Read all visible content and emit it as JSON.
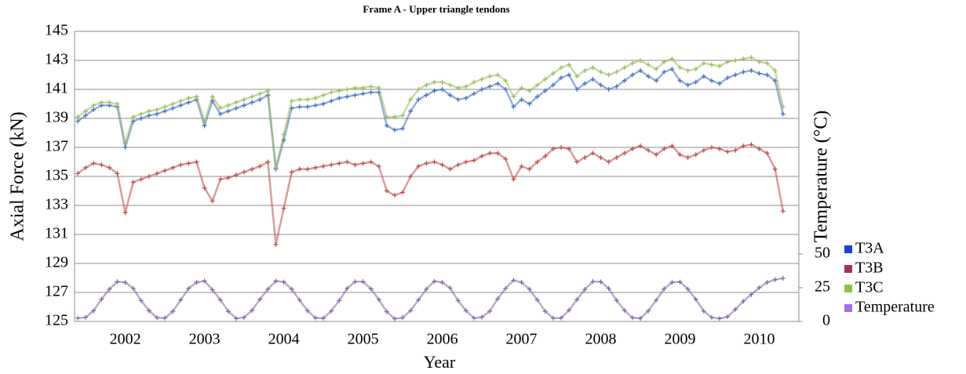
{
  "chart_data": {
    "type": "scatter",
    "title": "Frame A - Upper triangle tendons",
    "x_label": "Year",
    "y_label": "Axial Force (kN)",
    "y2_label": "Temperature (°C)",
    "xlim": [
      2001.36,
      2010.5
    ],
    "xticks": [
      2002,
      2003,
      2004,
      2005,
      2006,
      2007,
      2008,
      2009,
      2010
    ],
    "ylim": [
      125,
      145
    ],
    "yticks": [
      125,
      127,
      129,
      131,
      133,
      135,
      137,
      139,
      141,
      143,
      145
    ],
    "y2lim": [
      0,
      215
    ],
    "y2ticks": [
      0,
      25,
      50
    ],
    "grid": true,
    "legend": "right",
    "x": [
      2001.4,
      2001.5,
      2001.6,
      2001.7,
      2001.8,
      2001.9,
      2002.0,
      2002.1,
      2002.2,
      2002.3,
      2002.4,
      2002.5,
      2002.6,
      2002.7,
      2002.8,
      2002.9,
      2003.0,
      2003.1,
      2003.2,
      2003.3,
      2003.4,
      2003.5,
      2003.6,
      2003.7,
      2003.8,
      2003.9,
      2004.0,
      2004.1,
      2004.2,
      2004.3,
      2004.4,
      2004.5,
      2004.6,
      2004.7,
      2004.8,
      2004.9,
      2005.0,
      2005.1,
      2005.2,
      2005.3,
      2005.4,
      2005.5,
      2005.6,
      2005.7,
      2005.8,
      2005.9,
      2006.0,
      2006.1,
      2006.2,
      2006.3,
      2006.4,
      2006.5,
      2006.6,
      2006.7,
      2006.8,
      2006.9,
      2007.0,
      2007.1,
      2007.2,
      2007.3,
      2007.4,
      2007.5,
      2007.6,
      2007.7,
      2007.8,
      2007.9,
      2008.0,
      2008.1,
      2008.2,
      2008.3,
      2008.4,
      2008.5,
      2008.6,
      2008.7,
      2008.8,
      2008.9,
      2009.0,
      2009.1,
      2009.2,
      2009.3,
      2009.4,
      2009.5,
      2009.6,
      2009.7,
      2009.8,
      2009.9,
      2010.0,
      2010.1,
      2010.2,
      2010.3
    ],
    "series": [
      {
        "name": "T3A",
        "color": "#3f6fbf",
        "legend_color": "#1c3fdc",
        "values": [
          138.8,
          139.2,
          139.6,
          139.9,
          139.9,
          139.8,
          137.0,
          138.8,
          139.0,
          139.2,
          139.3,
          139.5,
          139.7,
          139.9,
          140.1,
          140.3,
          138.5,
          140.2,
          139.3,
          139.5,
          139.7,
          139.9,
          140.1,
          140.3,
          140.6,
          135.5,
          137.5,
          139.7,
          139.8,
          139.8,
          139.9,
          140.0,
          140.2,
          140.4,
          140.5,
          140.6,
          140.7,
          140.8,
          140.8,
          138.5,
          138.2,
          138.3,
          139.5,
          140.3,
          140.6,
          140.9,
          141.0,
          140.6,
          140.3,
          140.4,
          140.7,
          141.0,
          141.2,
          141.4,
          141.0,
          139.8,
          140.3,
          140.0,
          140.5,
          140.9,
          141.3,
          141.8,
          142.0,
          141.0,
          141.4,
          141.7,
          141.3,
          141.0,
          141.2,
          141.6,
          142.0,
          142.3,
          141.9,
          141.6,
          142.2,
          142.4,
          141.6,
          141.3,
          141.5,
          141.9,
          141.6,
          141.4,
          141.8,
          142.0,
          142.2,
          142.3,
          142.1,
          142.0,
          141.6,
          139.3
        ]
      },
      {
        "name": "T3B",
        "color": "#be4b48",
        "legend_color": "#a0325a",
        "values": [
          135.2,
          135.6,
          135.9,
          135.8,
          135.6,
          135.2,
          132.5,
          134.6,
          134.8,
          135.0,
          135.2,
          135.4,
          135.6,
          135.8,
          135.9,
          136.0,
          134.2,
          133.3,
          134.8,
          134.9,
          135.1,
          135.3,
          135.5,
          135.7,
          136.0,
          130.3,
          132.8,
          135.3,
          135.5,
          135.5,
          135.6,
          135.7,
          135.8,
          135.9,
          136.0,
          135.8,
          135.9,
          136.0,
          135.7,
          134.0,
          133.7,
          133.9,
          135.0,
          135.7,
          135.9,
          136.0,
          135.8,
          135.5,
          135.8,
          136.0,
          136.1,
          136.4,
          136.6,
          136.6,
          136.2,
          134.8,
          135.7,
          135.5,
          136.0,
          136.4,
          136.9,
          137.0,
          136.9,
          136.0,
          136.3,
          136.6,
          136.3,
          136.0,
          136.3,
          136.6,
          136.9,
          137.1,
          136.8,
          136.5,
          136.9,
          137.1,
          136.5,
          136.3,
          136.5,
          136.8,
          137.0,
          136.9,
          136.7,
          136.8,
          137.1,
          137.2,
          136.9,
          136.6,
          135.5,
          132.6
        ]
      },
      {
        "name": "T3C",
        "color": "#9bbb59",
        "legend_color": "#8fc43c",
        "values": [
          139.1,
          139.5,
          139.9,
          140.1,
          140.1,
          140.0,
          137.3,
          139.1,
          139.3,
          139.5,
          139.6,
          139.8,
          140.0,
          140.2,
          140.4,
          140.5,
          138.8,
          140.5,
          139.7,
          139.9,
          140.1,
          140.3,
          140.5,
          140.7,
          140.9,
          135.6,
          137.9,
          140.2,
          140.3,
          140.3,
          140.4,
          140.6,
          140.8,
          140.9,
          141.0,
          141.1,
          141.1,
          141.2,
          141.1,
          139.1,
          139.1,
          139.2,
          140.3,
          141.0,
          141.3,
          141.5,
          141.5,
          141.3,
          141.1,
          141.2,
          141.5,
          141.7,
          141.9,
          142.0,
          141.6,
          140.5,
          141.1,
          140.9,
          141.3,
          141.7,
          142.1,
          142.5,
          142.7,
          141.9,
          142.3,
          142.5,
          142.2,
          142.0,
          142.2,
          142.5,
          142.8,
          143.0,
          142.7,
          142.4,
          142.9,
          143.1,
          142.5,
          142.3,
          142.4,
          142.8,
          142.7,
          142.6,
          142.9,
          143.0,
          143.1,
          143.2,
          142.9,
          142.8,
          142.3,
          139.8
        ]
      },
      {
        "name": "Temperature",
        "color": "#8064a2",
        "legend_color": "#a070e6",
        "axis": "y2",
        "values": [
          2.5,
          3.0,
          8.0,
          16.5,
          24.0,
          29.5,
          29.0,
          24.5,
          15.5,
          8.0,
          2.8,
          2.5,
          7.5,
          16.0,
          24.5,
          29.0,
          30.0,
          23.5,
          16.0,
          7.5,
          2.2,
          3.0,
          8.2,
          16.5,
          24.0,
          30.0,
          29.2,
          24.0,
          15.8,
          8.0,
          2.6,
          2.4,
          7.8,
          15.5,
          24.5,
          29.5,
          29.5,
          24.2,
          16.2,
          7.2,
          2.0,
          2.8,
          8.0,
          16.0,
          24.0,
          29.8,
          29.0,
          24.8,
          15.5,
          8.0,
          2.5,
          3.2,
          7.6,
          16.8,
          24.6,
          30.5,
          29.0,
          24.0,
          16.0,
          7.5,
          2.4,
          2.6,
          8.4,
          16.2,
          23.8,
          29.6,
          29.4,
          24.5,
          15.6,
          8.2,
          2.8,
          2.3,
          7.8,
          15.8,
          24.2,
          29.0,
          29.3,
          24.0,
          16.4,
          7.6,
          3.0,
          2.2,
          3.5,
          9.0,
          15.0,
          20.0,
          25.0,
          29.0,
          31.0,
          32.0
        ]
      }
    ]
  }
}
